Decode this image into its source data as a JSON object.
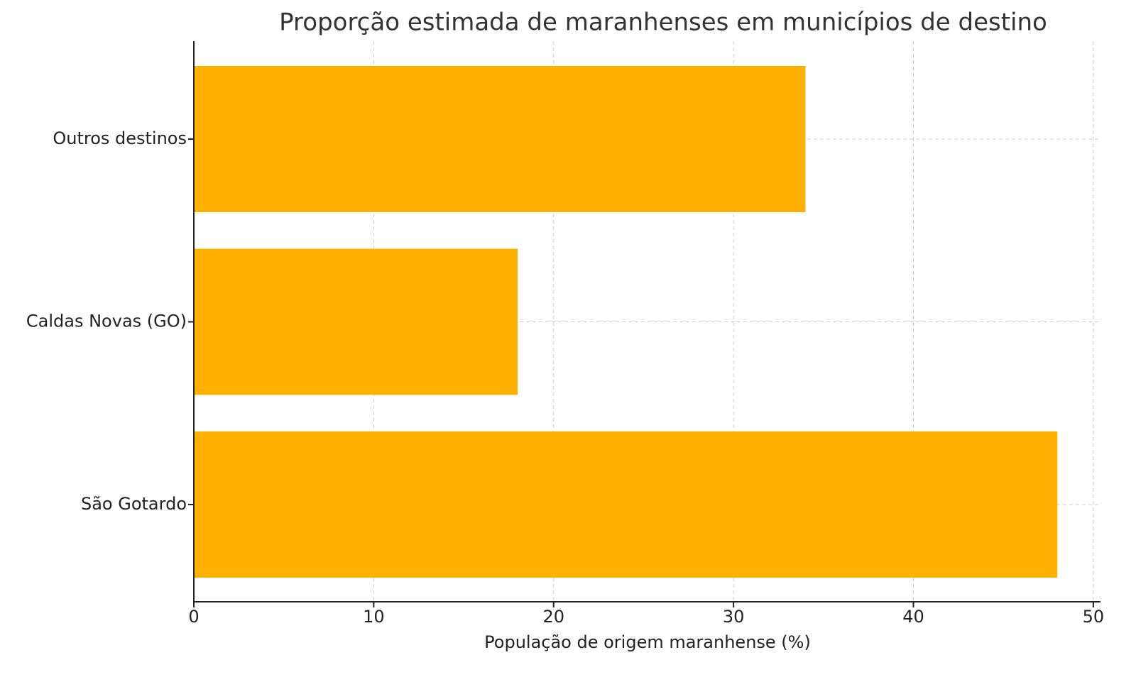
{
  "chart_data": {
    "type": "barh",
    "title": "Proporção estimada de maranhenses em municípios de destino",
    "x_label": "População de origem maranhense (%)",
    "categories": [
      "São Gotardo",
      "Caldas Novas (GO)",
      "Outros destinos"
    ],
    "values": [
      48,
      18,
      34
    ],
    "color": "#ffb000",
    "xlim": [
      0,
      50.4
    ],
    "xticks": [
      0,
      10,
      20,
      30,
      40,
      50
    ],
    "grid": true
  }
}
